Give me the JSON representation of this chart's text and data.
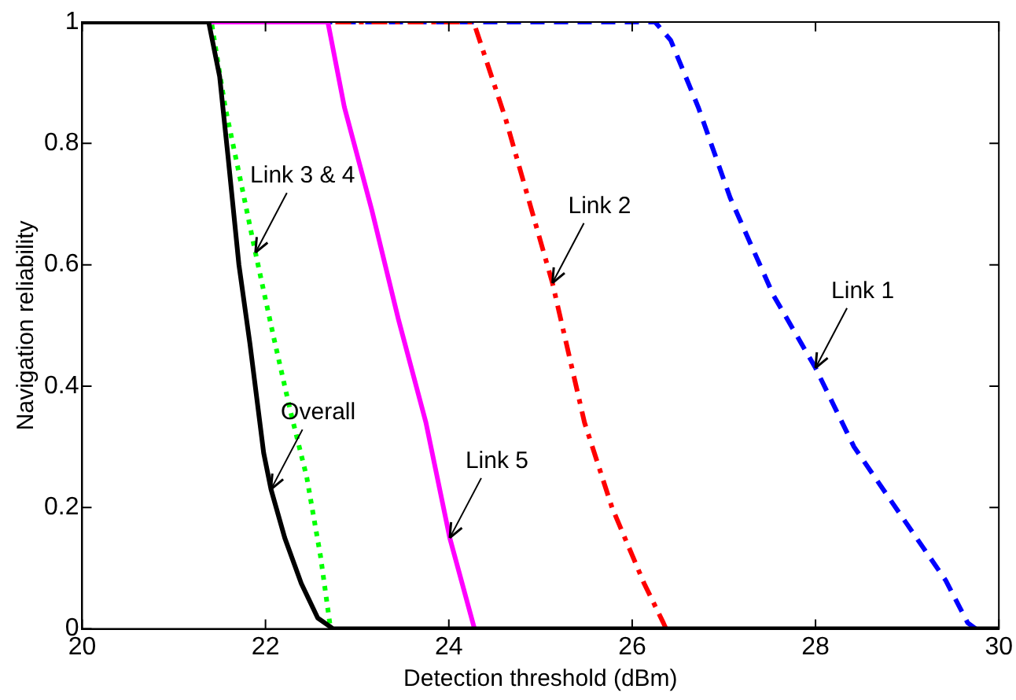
{
  "chart_data": {
    "type": "line",
    "xlabel": "Detection threshold (dBm)",
    "ylabel": "Navigation reliability",
    "xlim": [
      20,
      30
    ],
    "xticks": [
      20,
      22,
      24,
      26,
      28,
      30
    ],
    "ylim": [
      0,
      1
    ],
    "yticks": [
      0,
      0.2,
      0.4,
      0.6,
      0.8,
      1
    ],
    "grid": false,
    "legend": false,
    "marker": "none",
    "series": [
      {
        "color": "#0000ff",
        "line_style": "dashed",
        "x": [
          20,
          26.25,
          26.42,
          26.72,
          27.07,
          27.54,
          28.0,
          28.42,
          29.01,
          29.42,
          29.66,
          29.75
        ],
        "values": [
          1,
          1,
          0.97,
          0.86,
          0.71,
          0.55,
          0.43,
          0.3,
          0.17,
          0.08,
          0.01,
          0
        ]
      },
      {
        "color": "#ff0000",
        "line_style": "dashdot",
        "x": [
          20,
          24.27,
          24.62,
          25.13,
          25.48,
          25.78,
          26.13,
          26.34,
          26.37
        ],
        "values": [
          1,
          1,
          0.84,
          0.57,
          0.34,
          0.2,
          0.075,
          0.01,
          0
        ]
      },
      {
        "color": "#ff00ff",
        "line_style": "solid",
        "x": [
          21.41,
          22.68,
          22.86,
          23.16,
          23.45,
          23.75,
          24.01,
          24.28
        ],
        "values": [
          1,
          1,
          0.86,
          0.69,
          0.51,
          0.34,
          0.15,
          0
        ]
      },
      {
        "color": "#00ff00",
        "line_style": "dotted",
        "x": [
          20,
          21.41,
          21.56,
          21.74,
          21.89,
          22.09,
          22.27,
          22.45,
          22.6,
          22.71
        ],
        "values": [
          1,
          1,
          0.86,
          0.73,
          0.62,
          0.48,
          0.36,
          0.25,
          0.12,
          0
        ]
      },
      {
        "color": "#000000",
        "line_style": "solid",
        "x": [
          20,
          21.38,
          21.5,
          21.59,
          21.71,
          21.83,
          21.98,
          22.06,
          22.21,
          22.39,
          22.57,
          22.74,
          30
        ],
        "values": [
          1,
          1,
          0.91,
          0.78,
          0.6,
          0.47,
          0.29,
          0.23,
          0.15,
          0.075,
          0.018,
          0,
          0
        ]
      }
    ],
    "annotations": [
      {
        "text": "Link 3 & 4",
        "x": 21.89,
        "y": 0.62
      },
      {
        "text": "Overall",
        "x": 22.06,
        "y": 0.23
      },
      {
        "text": "Link 5",
        "x": 24.01,
        "y": 0.15
      },
      {
        "text": "Link 2",
        "x": 25.13,
        "y": 0.57
      },
      {
        "text": "Link 1",
        "x": 28.0,
        "y": 0.43
      }
    ]
  }
}
